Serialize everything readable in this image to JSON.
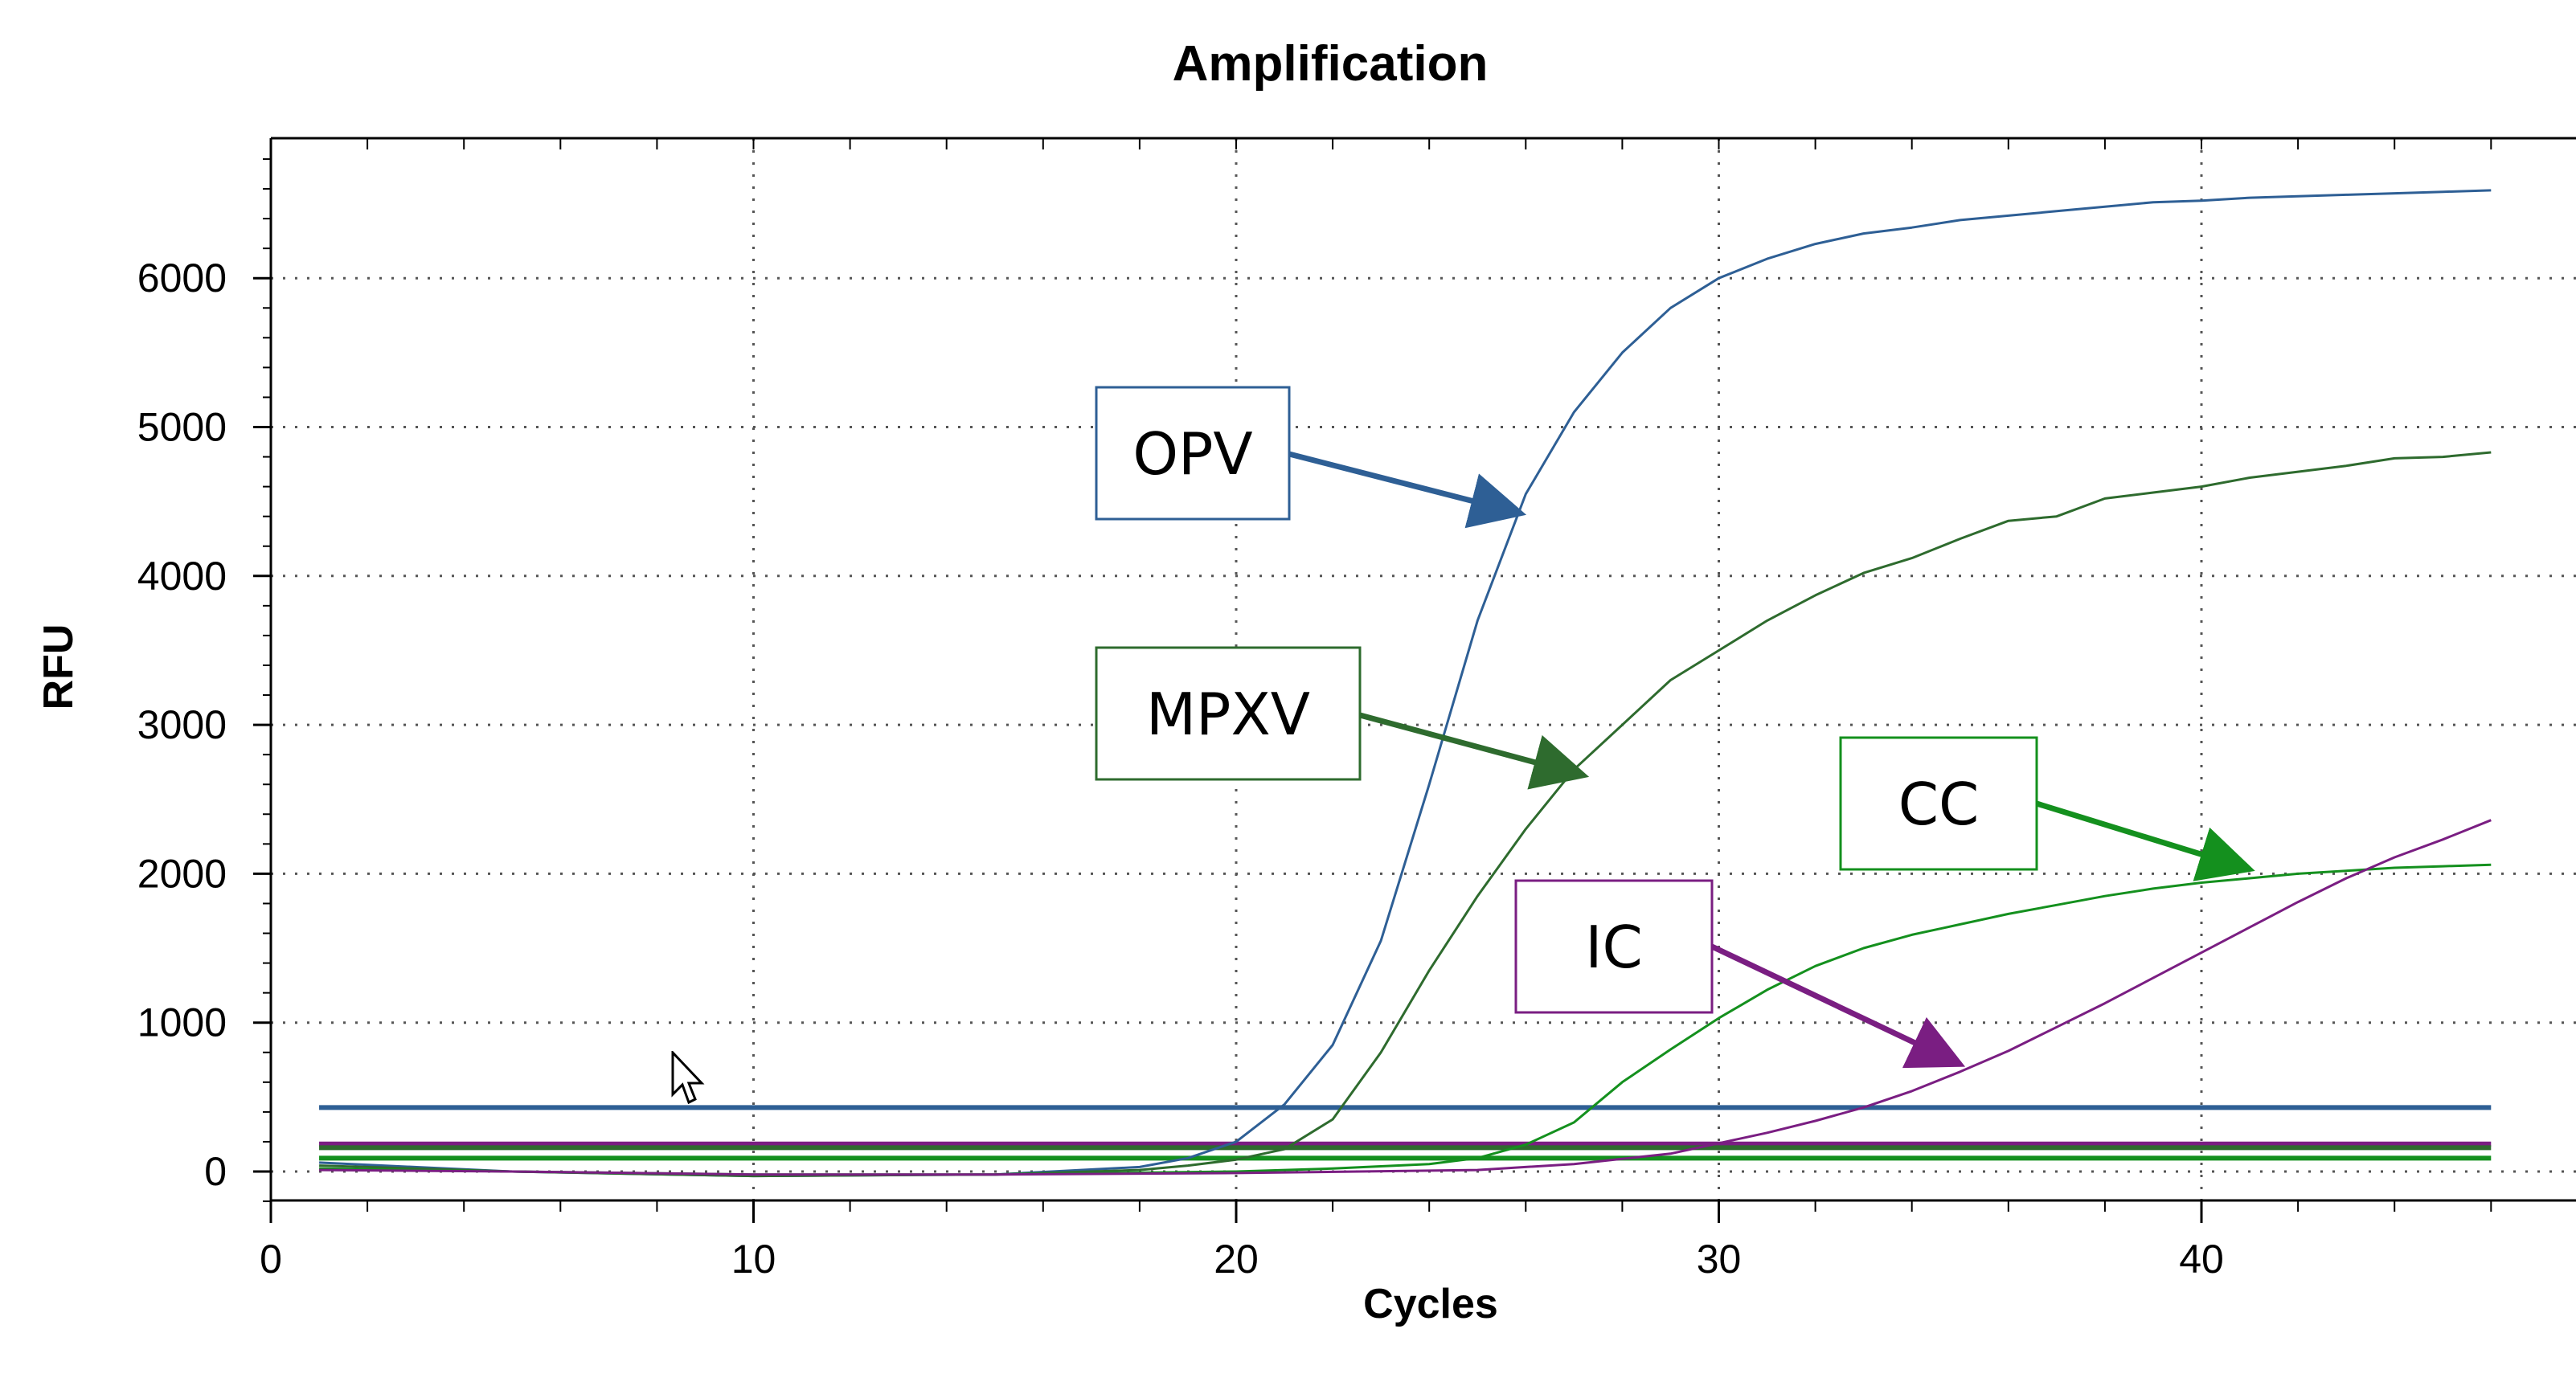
{
  "chart_data": {
    "type": "line",
    "title": "Amplification",
    "xlabel": "Cycles",
    "ylabel": "RFU",
    "xlim": [
      0,
      47
    ],
    "ylim": [
      -200,
      6900
    ],
    "x_ticks": [
      0,
      10,
      20,
      30,
      40
    ],
    "y_ticks": [
      0,
      1000,
      2000,
      3000,
      4000,
      5000,
      6000
    ],
    "grid": true,
    "colors": {
      "opv": "#2E5F95",
      "mpxv": "#2E6B2E",
      "cc": "#14901E",
      "ic": "#7A1E82",
      "grid": "#555555",
      "axis": "#000000"
    },
    "series": [
      {
        "key": "opv",
        "x": [
          1,
          5,
          10,
          15,
          18,
          19,
          20,
          21,
          22,
          23,
          24,
          25,
          26,
          27,
          28,
          29,
          30,
          31,
          32,
          33,
          34,
          35,
          36,
          37,
          38,
          39,
          40,
          41,
          42,
          43,
          44,
          45,
          46
        ],
        "y": [
          60,
          0,
          -30,
          -20,
          30,
          90,
          200,
          450,
          850,
          1550,
          2600,
          3700,
          4550,
          5100,
          5500,
          5800,
          6000,
          6130,
          6230,
          6300,
          6340,
          6390,
          6420,
          6450,
          6480,
          6510,
          6520,
          6540,
          6550,
          6560,
          6570,
          6580,
          6590
        ]
      },
      {
        "key": "mpxv",
        "x": [
          1,
          5,
          10,
          15,
          18,
          19,
          20,
          21,
          22,
          23,
          24,
          25,
          26,
          27,
          28,
          29,
          30,
          31,
          32,
          33,
          34,
          35,
          36,
          37,
          38,
          39,
          40,
          41,
          42,
          43,
          44,
          45,
          46
        ],
        "y": [
          40,
          0,
          -30,
          -20,
          10,
          40,
          80,
          150,
          350,
          800,
          1350,
          1850,
          2300,
          2700,
          3000,
          3300,
          3500,
          3700,
          3870,
          4020,
          4120,
          4250,
          4370,
          4400,
          4520,
          4560,
          4600,
          4660,
          4700,
          4740,
          4790,
          4800,
          4830
        ]
      },
      {
        "key": "cc",
        "x": [
          1,
          5,
          10,
          15,
          20,
          22,
          24,
          25,
          26,
          27,
          28,
          29,
          30,
          31,
          32,
          33,
          34,
          35,
          36,
          37,
          38,
          39,
          40,
          41,
          42,
          43,
          44,
          45,
          46
        ],
        "y": [
          20,
          0,
          -20,
          -20,
          0,
          20,
          50,
          90,
          180,
          330,
          600,
          820,
          1030,
          1220,
          1380,
          1500,
          1590,
          1660,
          1730,
          1790,
          1850,
          1900,
          1940,
          1970,
          2000,
          2020,
          2040,
          2050,
          2060
        ]
      },
      {
        "key": "ic",
        "x": [
          1,
          5,
          10,
          15,
          20,
          25,
          27,
          29,
          30,
          31,
          32,
          33,
          34,
          35,
          36,
          37,
          38,
          39,
          40,
          41,
          42,
          43,
          44,
          45,
          46
        ],
        "y": [
          10,
          0,
          -20,
          -20,
          -10,
          10,
          50,
          120,
          190,
          260,
          340,
          430,
          540,
          670,
          810,
          970,
          1130,
          1300,
          1470,
          1640,
          1810,
          1970,
          2110,
          2230,
          2360
        ]
      }
    ],
    "threshold_lines": [
      {
        "key": "opv",
        "y": 430
      },
      {
        "key": "ic",
        "y": 185
      },
      {
        "key": "mpxv",
        "y": 160
      },
      {
        "key": "cc",
        "y": 90
      }
    ],
    "annotations": [
      {
        "key": "opv",
        "text": "OPV",
        "target": [
          25.9,
          4420
        ]
      },
      {
        "key": "mpxv",
        "text": "MPXV",
        "target": [
          27.2,
          2660
        ]
      },
      {
        "key": "cc",
        "text": "CC",
        "target": [
          41.0,
          2030
        ]
      },
      {
        "key": "ic",
        "text": "IC",
        "target": [
          35.0,
          720
        ]
      }
    ]
  }
}
